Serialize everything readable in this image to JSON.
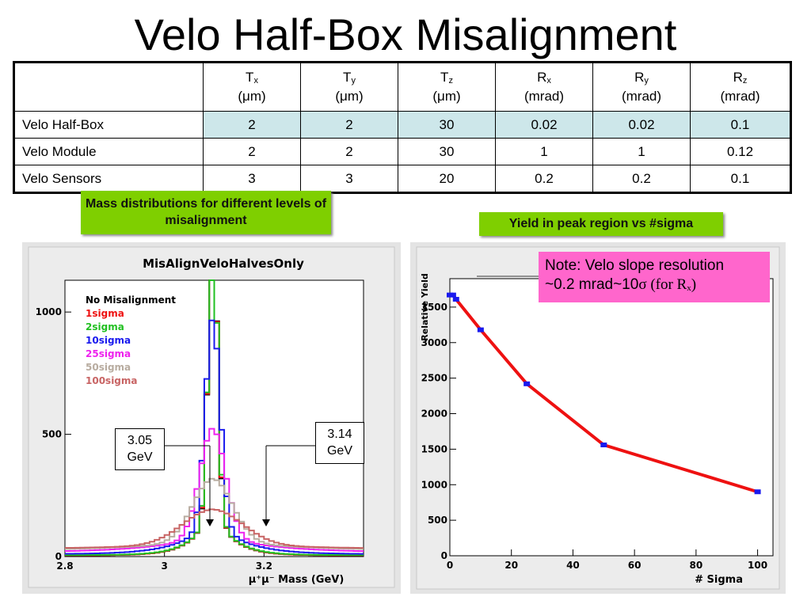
{
  "title": "Velo Half-Box Misalignment",
  "table": {
    "header": [
      {
        "main": "T",
        "sub": "x",
        "unit": "(μm)"
      },
      {
        "main": "T",
        "sub": "y",
        "unit": "(μm)"
      },
      {
        "main": "T",
        "sub": "z",
        "unit": "(μm)"
      },
      {
        "main": "R",
        "sub": "x",
        "unit": "(mrad)"
      },
      {
        "main": "R",
        "sub": "y",
        "unit": "(mrad)"
      },
      {
        "main": "R",
        "sub": "z",
        "unit": "(mrad)"
      }
    ],
    "rows": [
      {
        "label": "Velo Half-Box",
        "values": [
          "2",
          "2",
          "30",
          "0.02",
          "0.02",
          "0.1"
        ]
      },
      {
        "label": "Velo Module",
        "values": [
          "2",
          "2",
          "30",
          "1",
          "1",
          "0.12"
        ]
      },
      {
        "label": "Velo Sensors",
        "values": [
          "3",
          "3",
          "20",
          "0.2",
          "0.2",
          "0.1"
        ]
      }
    ]
  },
  "captions": {
    "mass": "Mass distributions for different levels of misalignment",
    "yield": "Yield in peak region vs #sigma"
  },
  "note": {
    "line1": "Note: Velo slope resolution",
    "line2_prefix": "~0.2 mrad~10",
    "sigma": "σ",
    "for": " (for R",
    "sub": "x",
    "close": ")"
  },
  "callouts": {
    "left": {
      "value": "3.05",
      "unit": "GeV"
    },
    "right": {
      "value": "3.14",
      "unit": "GeV"
    }
  },
  "chart_data": [
    {
      "type": "line",
      "title": "MisAlignVeloHalvesOnly",
      "xlabel": "μ⁺μ⁻ Mass (GeV)",
      "ylabel": "",
      "xlim": [
        2.8,
        3.4
      ],
      "ylim": [
        0,
        1130
      ],
      "xticks": [
        "2.8",
        "3",
        "3.2"
      ],
      "yticks": [
        "0",
        "500",
        "1000"
      ],
      "legend_position": "top-left",
      "series": [
        {
          "name": "No Misalignment",
          "color": "#000000"
        },
        {
          "name": "1sigma",
          "color": "#ee1111"
        },
        {
          "name": "2sigma",
          "color": "#22c022"
        },
        {
          "name": "10sigma",
          "color": "#1a1aee"
        },
        {
          "name": "25sigma",
          "color": "#ee22ee"
        },
        {
          "name": "50sigma",
          "color": "#b8aca0"
        },
        {
          "name": "100sigma",
          "color": "#c86464"
        }
      ]
    },
    {
      "type": "line",
      "title": "",
      "xlabel": "# Sigma",
      "ylabel": "Relative Yield",
      "xlim": [
        0,
        105
      ],
      "ylim": [
        0,
        3900
      ],
      "xticks": [
        "0",
        "20",
        "40",
        "60",
        "80",
        "100"
      ],
      "yticks": [
        "0",
        "500",
        "1000",
        "1500",
        "2000",
        "2500",
        "3000",
        "3500"
      ],
      "line_color": "#ee1111",
      "marker_color": "#1a1aee",
      "x": [
        0,
        1,
        2,
        10,
        25,
        50,
        100
      ],
      "y": [
        3670,
        3670,
        3610,
        3180,
        2420,
        1560,
        900
      ]
    }
  ]
}
